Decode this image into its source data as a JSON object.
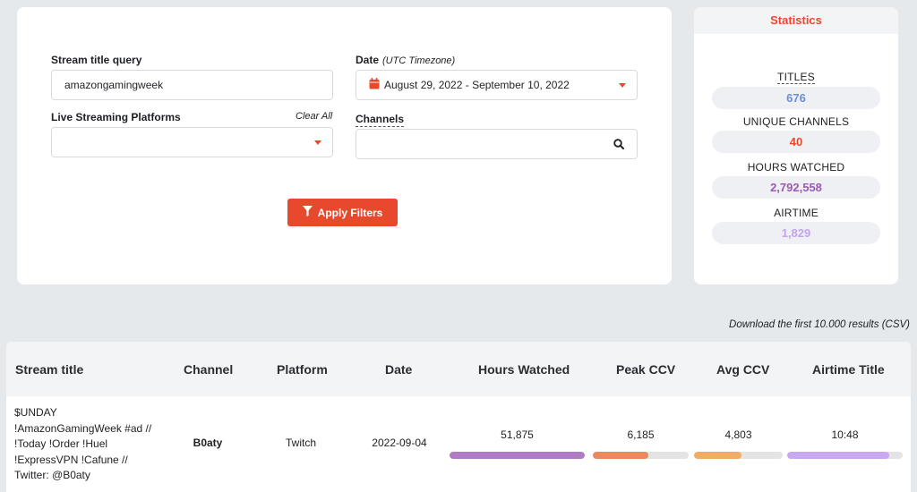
{
  "filters": {
    "stream_title_label": "Stream title query",
    "stream_title_value": "amazongamingweek",
    "date_label": "Date",
    "date_note": "(UTC Timezone)",
    "date_value": "August 29, 2022 - September 10, 2022",
    "platforms_label": "Live Streaming Platforms",
    "clear_all": "Clear All",
    "platforms_value": "",
    "channels_label": "Channels",
    "channels_value": "",
    "apply_label": "Apply Filters"
  },
  "statistics": {
    "title": "Statistics",
    "items": [
      {
        "label": "TITLES",
        "value": "676",
        "color": "#6c8fd6"
      },
      {
        "label": "UNIQUE CHANNELS",
        "value": "40",
        "color": "#e8492c"
      },
      {
        "label": "HOURS WATCHED",
        "value": "2,792,558",
        "color": "#9b59b6"
      },
      {
        "label": "AIRTIME",
        "value": "1,829",
        "color": "#c3a4f0"
      }
    ]
  },
  "csv_link": "Download the first 10.000 results (CSV)",
  "table": {
    "columns": [
      "Stream title",
      "Channel",
      "Platform",
      "Date",
      "Hours Watched",
      "Peak CCV",
      "Avg CCV",
      "Airtime Title"
    ],
    "rows": [
      {
        "stream_title": "$UNDAY !AmazonGamingWeek #ad // !Today !Order !Huel !ExpressVPN !Cafune // Twitter: @B0aty",
        "channel": "B0aty",
        "platform": "Twitch",
        "date": "2022-09-04",
        "hours_watched": "51,875",
        "hours_watched_fill": 1.0,
        "peak_ccv": "6,185",
        "peak_ccv_fill": 0.58,
        "avg_ccv": "4,803",
        "avg_ccv_fill": 0.54,
        "airtime": "10:48",
        "airtime_fill": 0.88
      }
    ],
    "bar_colors": {
      "hours_watched": "#b07cc6",
      "peak_ccv": "#e98a5f",
      "avg_ccv": "#f0ad63",
      "airtime": "#c9a8f0"
    }
  }
}
